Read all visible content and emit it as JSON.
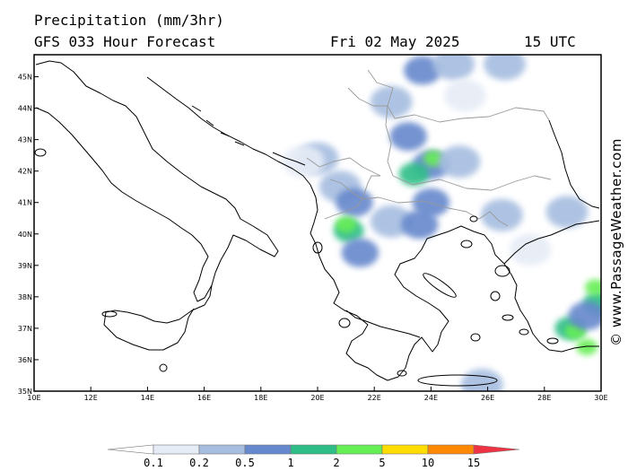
{
  "header": {
    "line1": "Precipitation (mm/3hr)",
    "line2": "GFS 033 Hour Forecast",
    "date": "Fri 02 May 2025",
    "time": "15 UTC"
  },
  "map": {
    "lon_range": [
      10,
      30
    ],
    "lat_range": [
      35,
      45.7
    ],
    "lon_ticks": [
      "10E",
      "12E",
      "14E",
      "16E",
      "18E",
      "20E",
      "22E",
      "24E",
      "26E",
      "28E",
      "30E"
    ],
    "lat_ticks": [
      "35N",
      "36N",
      "37N",
      "38N",
      "39N",
      "40N",
      "41N",
      "42N",
      "43N",
      "44N",
      "45N"
    ],
    "coast_color": "#000000",
    "border_color": "#999999"
  },
  "precip_cells": [
    {
      "lon": 23.7,
      "lat": 45.2,
      "mm": 0.5
    },
    {
      "lon": 26.6,
      "lat": 45.4,
      "mm": 0.2
    },
    {
      "lon": 24.8,
      "lat": 45.4,
      "mm": 0.2
    },
    {
      "lon": 22.6,
      "lat": 44.2,
      "mm": 0.2
    },
    {
      "lon": 20.0,
      "lat": 42.4,
      "mm": 0.2
    },
    {
      "lon": 23.2,
      "lat": 43.1,
      "mm": 0.5
    },
    {
      "lon": 24.0,
      "lat": 42.2,
      "mm": 0.5
    },
    {
      "lon": 24.1,
      "lat": 42.4,
      "mm": 2
    },
    {
      "lon": 23.4,
      "lat": 41.9,
      "mm": 1
    },
    {
      "lon": 25.0,
      "lat": 42.3,
      "mm": 0.2
    },
    {
      "lon": 20.8,
      "lat": 41.5,
      "mm": 0.2
    },
    {
      "lon": 21.3,
      "lat": 41.0,
      "mm": 0.5
    },
    {
      "lon": 24.0,
      "lat": 41.0,
      "mm": 0.5
    },
    {
      "lon": 22.6,
      "lat": 40.4,
      "mm": 0.2
    },
    {
      "lon": 21.1,
      "lat": 40.1,
      "mm": 1
    },
    {
      "lon": 21.0,
      "lat": 40.3,
      "mm": 2
    },
    {
      "lon": 21.5,
      "lat": 39.4,
      "mm": 0.5
    },
    {
      "lon": 23.6,
      "lat": 40.3,
      "mm": 0.5
    },
    {
      "lon": 26.5,
      "lat": 40.6,
      "mm": 0.2
    },
    {
      "lon": 28.8,
      "lat": 40.7,
      "mm": 0.2
    },
    {
      "lon": 27.5,
      "lat": 39.5,
      "mm": 0.1
    },
    {
      "lon": 25.8,
      "lat": 35.2,
      "mm": 0.2
    },
    {
      "lon": 28.9,
      "lat": 37.0,
      "mm": 1
    },
    {
      "lon": 29.1,
      "lat": 36.9,
      "mm": 2
    },
    {
      "lon": 29.5,
      "lat": 36.4,
      "mm": 2
    },
    {
      "lon": 29.9,
      "lat": 37.8,
      "mm": 1
    },
    {
      "lon": 29.8,
      "lat": 38.3,
      "mm": 2
    },
    {
      "lon": 29.5,
      "lat": 37.4,
      "mm": 0.5
    },
    {
      "lon": 19.5,
      "lat": 42.3,
      "mm": 0.1
    },
    {
      "lon": 25.2,
      "lat": 44.4,
      "mm": 0.1
    }
  ],
  "legend": {
    "labels": [
      "0.1",
      "0.2",
      "0.5",
      "1",
      "2",
      "5",
      "10",
      "15"
    ],
    "colors": [
      "#ffffff",
      "#e6ecf6",
      "#a6bde0",
      "#6688cc",
      "#2dbd87",
      "#66ee55",
      "#ffdd00",
      "#ff8800",
      "#ee3344"
    ]
  },
  "credit": "© www.PassageWeather.com"
}
